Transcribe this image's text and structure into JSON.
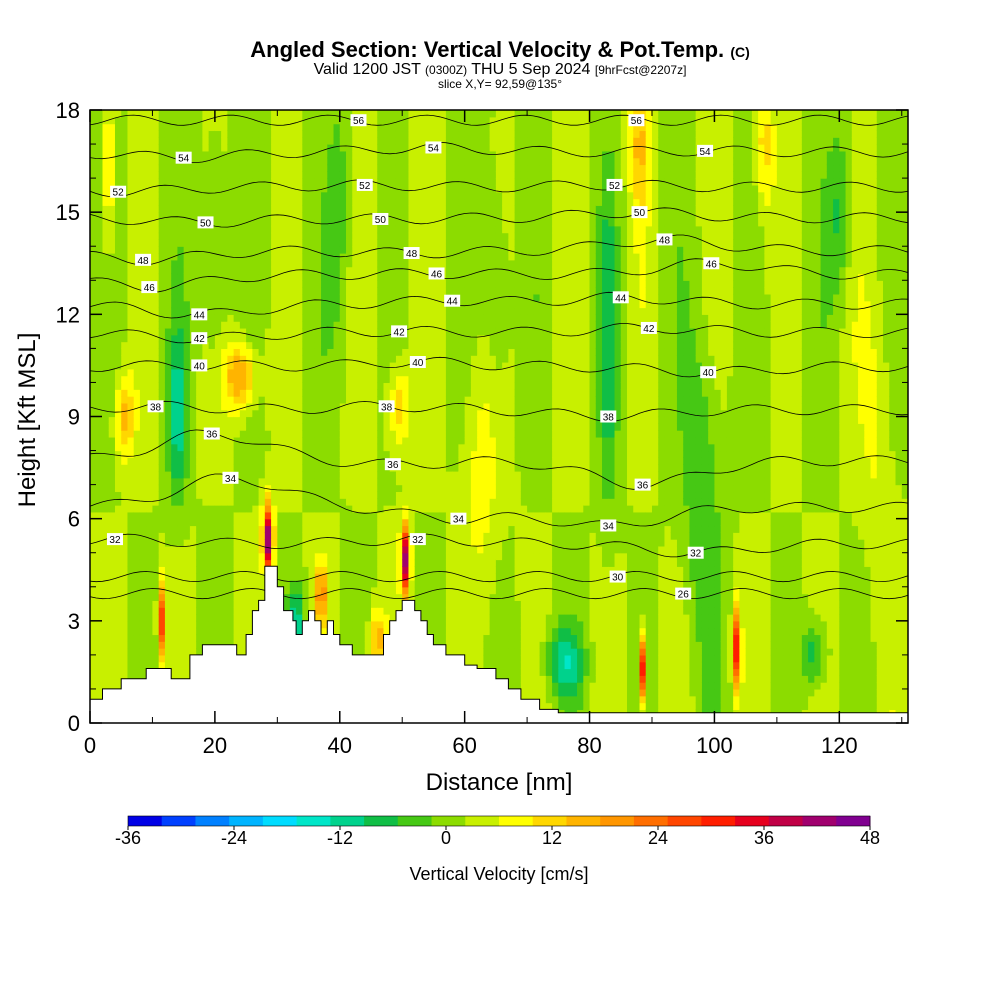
{
  "chart_data": {
    "type": "heatmap",
    "title": "Angled Section: Vertical Velocity & Pot.Temp.",
    "title_unit": "(C)",
    "subtitle": {
      "prefix": "Valid 1200 JST",
      "utc": "(0300Z)",
      "date": "THU 5 Sep 2024",
      "fcst": "[9hrFcst@2207z]"
    },
    "slice_label": "slice X,Y= 92,59@135°",
    "xlabel": "Distance [nm]",
    "ylabel": "Height [Kft MSL]",
    "xlim": [
      0,
      131
    ],
    "ylim": [
      0,
      18
    ],
    "x_ticks": [
      "0",
      "20",
      "40",
      "60",
      "80",
      "100",
      "120"
    ],
    "y_ticks": [
      "0",
      "3",
      "6",
      "9",
      "12",
      "15",
      "18"
    ],
    "colorbar": {
      "label": "Vertical Velocity [cm/s]",
      "range": [
        -36,
        48
      ],
      "step": 4,
      "tick_labels": [
        "-36",
        "-24",
        "-12",
        "0",
        "12",
        "24",
        "36",
        "48"
      ],
      "colors": [
        "#0000e6",
        "#0040ff",
        "#0080ff",
        "#00b4ff",
        "#00dcff",
        "#00e6c8",
        "#00d28c",
        "#10be46",
        "#46c814",
        "#8cdc00",
        "#c8f000",
        "#ffff00",
        "#ffd700",
        "#ffb400",
        "#ff9600",
        "#ff6e00",
        "#ff4600",
        "#ff1e00",
        "#e6001e",
        "#c00046",
        "#a0006e",
        "#800090"
      ]
    },
    "terrain_kft": [
      [
        0,
        0.7
      ],
      [
        2,
        1
      ],
      [
        5,
        1.3
      ],
      [
        9,
        1.6
      ],
      [
        13,
        1.3
      ],
      [
        16,
        2
      ],
      [
        18,
        2.3
      ],
      [
        21,
        2.3
      ],
      [
        23,
        2.3
      ],
      [
        23.5,
        2
      ],
      [
        25,
        2.6
      ],
      [
        26,
        3.3
      ],
      [
        27,
        3.6
      ],
      [
        28,
        4.6
      ],
      [
        29.5,
        4.6
      ],
      [
        30,
        4
      ],
      [
        31,
        3.3
      ],
      [
        32.5,
        3
      ],
      [
        33,
        2.6
      ],
      [
        34,
        3
      ],
      [
        35,
        3.3
      ],
      [
        36,
        3
      ],
      [
        37,
        2.6
      ],
      [
        38,
        3
      ],
      [
        39,
        2.6
      ],
      [
        40,
        2.3
      ],
      [
        42,
        2
      ],
      [
        45,
        2
      ],
      [
        47,
        2.6
      ],
      [
        48,
        3
      ],
      [
        49,
        3.3
      ],
      [
        50,
        3.6
      ],
      [
        51,
        3.6
      ],
      [
        52,
        3.3
      ],
      [
        53,
        3
      ],
      [
        54,
        2.6
      ],
      [
        55,
        2.3
      ],
      [
        57,
        2
      ],
      [
        60,
        1.7
      ],
      [
        62,
        1.6
      ],
      [
        65,
        1.3
      ],
      [
        67,
        1
      ],
      [
        69,
        0.7
      ],
      [
        72,
        0.4
      ],
      [
        75,
        0.3
      ],
      [
        80,
        0.3
      ],
      [
        131,
        0.3
      ]
    ],
    "theta_contour_labels": [
      {
        "x": 43,
        "y": 17.7,
        "text": "56"
      },
      {
        "x": 87.5,
        "y": 17.7,
        "text": "56"
      },
      {
        "x": 15,
        "y": 16.6,
        "text": "54"
      },
      {
        "x": 55,
        "y": 16.9,
        "text": "54"
      },
      {
        "x": 98.5,
        "y": 16.8,
        "text": "54"
      },
      {
        "x": 4.5,
        "y": 15.6,
        "text": "52"
      },
      {
        "x": 44,
        "y": 15.8,
        "text": "52"
      },
      {
        "x": 84,
        "y": 15.8,
        "text": "52"
      },
      {
        "x": 18.5,
        "y": 14.7,
        "text": "50"
      },
      {
        "x": 46.5,
        "y": 14.8,
        "text": "50"
      },
      {
        "x": 88,
        "y": 15.0,
        "text": "50"
      },
      {
        "x": 8.5,
        "y": 13.6,
        "text": "48"
      },
      {
        "x": 51.5,
        "y": 13.8,
        "text": "48"
      },
      {
        "x": 92,
        "y": 14.2,
        "text": "48"
      },
      {
        "x": 9.5,
        "y": 12.8,
        "text": "46"
      },
      {
        "x": 55.5,
        "y": 13.2,
        "text": "46"
      },
      {
        "x": 99.5,
        "y": 13.5,
        "text": "46"
      },
      {
        "x": 17.5,
        "y": 12.0,
        "text": "44"
      },
      {
        "x": 58,
        "y": 12.4,
        "text": "44"
      },
      {
        "x": 85,
        "y": 12.5,
        "text": "44"
      },
      {
        "x": 17.5,
        "y": 11.3,
        "text": "42"
      },
      {
        "x": 49.5,
        "y": 11.5,
        "text": "42"
      },
      {
        "x": 89.5,
        "y": 11.6,
        "text": "42"
      },
      {
        "x": 17.5,
        "y": 10.5,
        "text": "40"
      },
      {
        "x": 52.5,
        "y": 10.6,
        "text": "40"
      },
      {
        "x": 99,
        "y": 10.3,
        "text": "40"
      },
      {
        "x": 10.5,
        "y": 9.3,
        "text": "38"
      },
      {
        "x": 47.5,
        "y": 9.3,
        "text": "38"
      },
      {
        "x": 83,
        "y": 9.0,
        "text": "38"
      },
      {
        "x": 19.5,
        "y": 8.5,
        "text": "36"
      },
      {
        "x": 48.5,
        "y": 7.6,
        "text": "36"
      },
      {
        "x": 88.5,
        "y": 7.0,
        "text": "36"
      },
      {
        "x": 22.5,
        "y": 7.2,
        "text": "34"
      },
      {
        "x": 59,
        "y": 6.0,
        "text": "34"
      },
      {
        "x": 83,
        "y": 5.8,
        "text": "34"
      },
      {
        "x": 4,
        "y": 5.4,
        "text": "32"
      },
      {
        "x": 52.5,
        "y": 5.4,
        "text": "32"
      },
      {
        "x": 97,
        "y": 5.0,
        "text": "32"
      },
      {
        "x": 84.5,
        "y": 4.3,
        "text": "30"
      },
      {
        "x": 95,
        "y": 3.8,
        "text": "26"
      }
    ]
  }
}
